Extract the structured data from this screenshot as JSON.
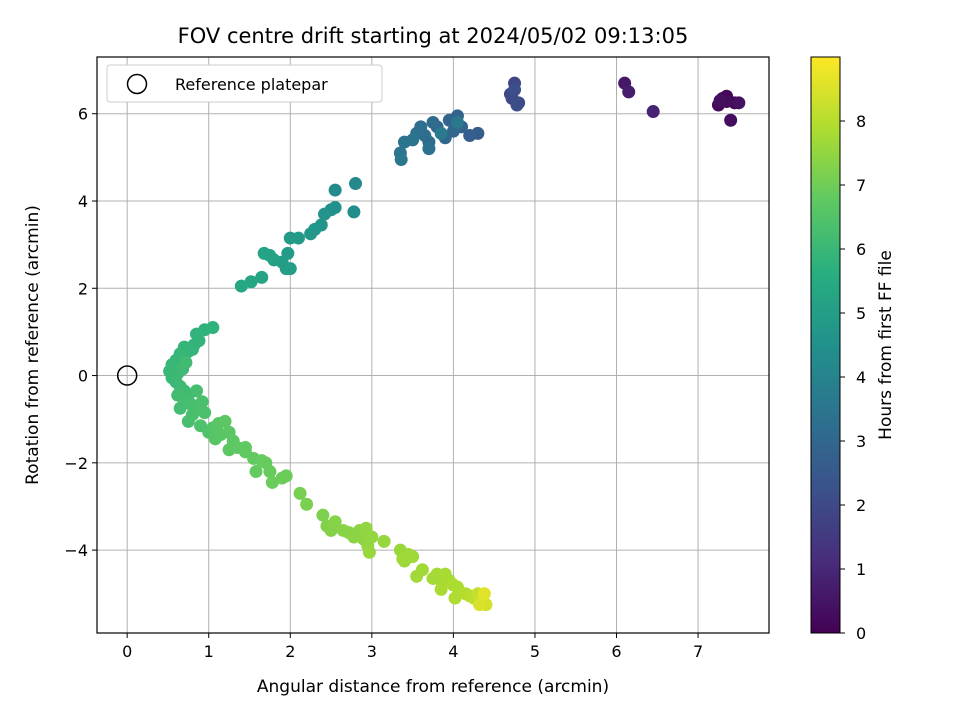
{
  "chart_data": {
    "type": "scatter",
    "title": "FOV centre drift starting at 2024/05/02 09:13:05",
    "xlabel": "Angular distance from reference (arcmin)",
    "ylabel": "Rotation from reference (arcmin)",
    "xlim": [
      -0.37,
      7.87
    ],
    "ylim": [
      -5.9,
      7.3
    ],
    "xticks": [
      0,
      1,
      2,
      3,
      4,
      5,
      6,
      7
    ],
    "yticks": [
      -4,
      -2,
      0,
      2,
      4,
      6
    ],
    "grid": true,
    "legend": {
      "placement": "top-left",
      "entries": [
        "Reference platepar"
      ]
    },
    "reference_point": {
      "x": 0,
      "y": 0
    },
    "colorbar": {
      "label": "Hours from first FF file",
      "range": [
        0,
        9
      ],
      "ticks": [
        0,
        1,
        2,
        3,
        4,
        5,
        6,
        7,
        8
      ],
      "colormap": "viridis"
    },
    "points": [
      [
        7.45,
        6.25,
        0.05
      ],
      [
        7.3,
        6.35,
        0.1
      ],
      [
        7.35,
        6.4,
        0.15
      ],
      [
        7.25,
        6.2,
        0.2
      ],
      [
        7.35,
        6.28,
        0.25
      ],
      [
        7.4,
        5.85,
        0.3
      ],
      [
        7.27,
        6.3,
        0.35
      ],
      [
        7.5,
        6.25,
        0.4
      ],
      [
        6.1,
        6.7,
        0.6
      ],
      [
        6.15,
        6.5,
        0.7
      ],
      [
        6.45,
        6.05,
        0.9
      ],
      [
        4.75,
        6.7,
        1.9
      ],
      [
        4.7,
        6.45,
        1.95
      ],
      [
        4.72,
        6.35,
        2.0
      ],
      [
        4.8,
        6.25,
        2.05
      ],
      [
        4.78,
        6.2,
        2.1
      ],
      [
        4.75,
        6.55,
        2.15
      ],
      [
        4.3,
        5.55,
        2.6
      ],
      [
        4.2,
        5.5,
        2.7
      ],
      [
        4.1,
        5.7,
        2.8
      ],
      [
        4.05,
        5.95,
        2.85
      ],
      [
        3.95,
        5.85,
        2.9
      ],
      [
        4.0,
        5.6,
        2.95
      ],
      [
        3.9,
        5.45,
        3.0
      ],
      [
        3.8,
        5.7,
        3.05
      ],
      [
        3.75,
        5.8,
        3.1
      ],
      [
        3.7,
        5.35,
        3.15
      ],
      [
        3.65,
        5.5,
        3.2
      ],
      [
        3.6,
        5.7,
        3.25
      ],
      [
        3.55,
        5.55,
        3.3
      ],
      [
        3.7,
        5.2,
        3.35
      ],
      [
        3.5,
        5.4,
        3.4
      ],
      [
        3.4,
        5.35,
        3.45
      ],
      [
        3.35,
        5.1,
        3.5
      ],
      [
        3.36,
        4.95,
        3.55
      ],
      [
        4.05,
        5.8,
        3.6
      ],
      [
        3.85,
        5.55,
        3.65
      ],
      [
        2.8,
        4.4,
        4.2
      ],
      [
        2.55,
        4.25,
        4.3
      ],
      [
        2.78,
        3.75,
        4.4
      ],
      [
        2.55,
        3.85,
        4.5
      ],
      [
        2.5,
        3.8,
        4.55
      ],
      [
        2.42,
        3.7,
        4.6
      ],
      [
        2.38,
        3.45,
        4.65
      ],
      [
        2.3,
        3.35,
        4.7
      ],
      [
        2.25,
        3.25,
        4.75
      ],
      [
        2.1,
        3.15,
        4.8
      ],
      [
        2.0,
        3.15,
        4.85
      ],
      [
        1.97,
        2.8,
        4.9
      ],
      [
        1.9,
        2.6,
        4.95
      ],
      [
        1.95,
        2.45,
        5.0
      ],
      [
        2.0,
        2.45,
        5.05
      ],
      [
        1.8,
        2.65,
        5.1
      ],
      [
        1.75,
        2.75,
        5.15
      ],
      [
        1.68,
        2.8,
        5.2
      ],
      [
        1.65,
        2.25,
        5.25
      ],
      [
        1.52,
        2.15,
        5.3
      ],
      [
        1.4,
        2.05,
        5.35
      ],
      [
        1.05,
        1.1,
        5.75
      ],
      [
        0.95,
        1.05,
        5.8
      ],
      [
        0.85,
        0.95,
        5.82
      ],
      [
        0.88,
        0.8,
        5.84
      ],
      [
        0.82,
        0.7,
        5.86
      ],
      [
        0.8,
        0.6,
        5.88
      ],
      [
        0.75,
        0.55,
        5.9
      ],
      [
        0.7,
        0.65,
        5.92
      ],
      [
        0.65,
        0.5,
        5.94
      ],
      [
        0.6,
        0.35,
        5.96
      ],
      [
        0.55,
        0.25,
        5.98
      ],
      [
        0.52,
        0.1,
        6.0
      ],
      [
        0.55,
        -0.05,
        6.02
      ],
      [
        0.6,
        -0.15,
        6.04
      ],
      [
        0.62,
        0.05,
        6.06
      ],
      [
        0.65,
        -0.25,
        6.08
      ],
      [
        0.68,
        0.15,
        6.1
      ],
      [
        0.7,
        -0.35,
        6.12
      ],
      [
        0.72,
        0.3,
        6.14
      ],
      [
        0.75,
        -0.45,
        6.16
      ],
      [
        0.62,
        -0.45,
        6.18
      ],
      [
        0.65,
        -0.75,
        6.2
      ],
      [
        0.7,
        -0.6,
        6.22
      ],
      [
        0.78,
        -0.65,
        6.24
      ],
      [
        0.85,
        -0.35,
        6.26
      ],
      [
        0.82,
        -0.8,
        6.28
      ],
      [
        0.75,
        -1.05,
        6.3
      ],
      [
        0.8,
        -0.9,
        6.32
      ],
      [
        0.88,
        -0.7,
        6.34
      ],
      [
        0.92,
        -0.6,
        6.36
      ],
      [
        0.95,
        -0.85,
        6.38
      ],
      [
        0.9,
        -1.15,
        6.4
      ],
      [
        1.0,
        -1.3,
        6.5
      ],
      [
        1.05,
        -1.2,
        6.55
      ],
      [
        1.08,
        -1.45,
        6.6
      ],
      [
        1.12,
        -1.1,
        6.62
      ],
      [
        1.15,
        -1.35,
        6.64
      ],
      [
        1.2,
        -1.05,
        6.66
      ],
      [
        1.25,
        -1.3,
        6.68
      ],
      [
        1.3,
        -1.5,
        6.7
      ],
      [
        1.25,
        -1.7,
        6.72
      ],
      [
        1.35,
        -1.65,
        6.74
      ],
      [
        1.45,
        -1.65,
        6.76
      ],
      [
        1.45,
        -1.75,
        6.78
      ],
      [
        1.55,
        -1.9,
        6.8
      ],
      [
        1.58,
        -2.2,
        6.82
      ],
      [
        1.65,
        -1.95,
        6.84
      ],
      [
        1.7,
        -2.0,
        6.86
      ],
      [
        1.75,
        -2.2,
        6.88
      ],
      [
        1.78,
        -2.45,
        6.9
      ],
      [
        1.9,
        -2.35,
        6.92
      ],
      [
        1.95,
        -2.3,
        6.94
      ],
      [
        2.12,
        -2.7,
        7.1
      ],
      [
        2.2,
        -2.95,
        7.15
      ],
      [
        2.4,
        -3.2,
        7.2
      ],
      [
        2.45,
        -3.45,
        7.25
      ],
      [
        2.5,
        -3.55,
        7.3
      ],
      [
        2.55,
        -3.35,
        7.32
      ],
      [
        2.65,
        -3.55,
        7.35
      ],
      [
        2.72,
        -3.6,
        7.37
      ],
      [
        2.78,
        -3.7,
        7.4
      ],
      [
        2.85,
        -3.55,
        7.42
      ],
      [
        2.9,
        -3.75,
        7.45
      ],
      [
        2.93,
        -3.5,
        7.47
      ],
      [
        2.95,
        -3.9,
        7.5
      ],
      [
        3.0,
        -3.7,
        7.52
      ],
      [
        3.15,
        -3.8,
        7.55
      ],
      [
        2.97,
        -4.05,
        7.57
      ],
      [
        3.35,
        -4.0,
        7.6
      ],
      [
        3.4,
        -4.25,
        7.62
      ],
      [
        3.45,
        -4.1,
        7.64
      ],
      [
        3.5,
        -4.15,
        7.66
      ],
      [
        3.38,
        -4.2,
        7.68
      ],
      [
        3.55,
        -4.6,
        7.7
      ],
      [
        3.62,
        -4.45,
        7.72
      ],
      [
        3.75,
        -4.65,
        7.74
      ],
      [
        3.8,
        -4.55,
        7.76
      ],
      [
        3.85,
        -4.7,
        7.78
      ],
      [
        3.9,
        -4.55,
        7.8
      ],
      [
        3.95,
        -4.7,
        7.82
      ],
      [
        3.85,
        -4.9,
        7.84
      ],
      [
        4.0,
        -4.8,
        7.86
      ],
      [
        4.05,
        -4.85,
        7.88
      ],
      [
        4.02,
        -5.1,
        7.9
      ],
      [
        4.15,
        -5.0,
        7.95
      ],
      [
        4.2,
        -5.05,
        8.0
      ],
      [
        4.25,
        -5.1,
        8.1
      ],
      [
        4.3,
        -5.0,
        8.2
      ],
      [
        4.35,
        -5.15,
        8.3
      ],
      [
        4.4,
        -5.25,
        8.4
      ],
      [
        4.32,
        -5.25,
        8.5
      ],
      [
        4.38,
        -5.0,
        8.6
      ]
    ]
  }
}
